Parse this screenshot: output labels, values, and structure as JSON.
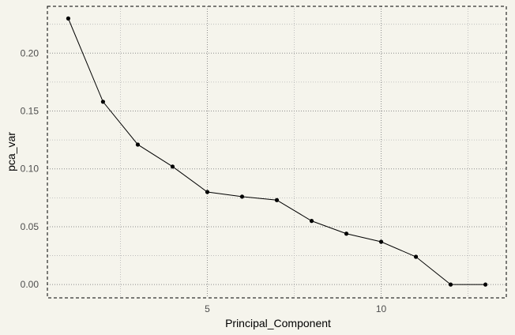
{
  "colors": {
    "background": "#f5f4ec",
    "grid_major": "#8c8c8c",
    "grid_minor": "#b4b4b4",
    "line": "#000000",
    "point": "#000000",
    "panel_border": "#000000",
    "tick_text": "#4d4d4d"
  },
  "chart_data": {
    "type": "line",
    "title": "",
    "xlabel": "Principal_Component",
    "ylabel": "pca_var",
    "x": [
      1,
      2,
      3,
      4,
      5,
      6,
      7,
      8,
      9,
      10,
      11,
      12,
      13
    ],
    "series": [
      {
        "values": [
          0.23,
          0.158,
          0.121,
          0.102,
          0.08,
          0.076,
          0.073,
          0.055,
          0.044,
          0.037,
          0.024,
          0.0,
          0.0
        ]
      }
    ],
    "xlim": [
      0.4,
      13.6
    ],
    "ylim": [
      -0.0115,
      0.2405
    ],
    "x_ticks": [
      5,
      10
    ],
    "x_tick_labels": [
      "5",
      "10"
    ],
    "x_minor_ticks": [
      2.5,
      7.5,
      12.5
    ],
    "y_ticks": [
      0.0,
      0.05,
      0.1,
      0.15,
      0.2
    ],
    "y_tick_labels": [
      "0.00",
      "0.05",
      "0.10",
      "0.15",
      "0.20"
    ],
    "y_minor_ticks": [
      0.025,
      0.075,
      0.125,
      0.175,
      0.225
    ],
    "grid": true,
    "grid_style": "dotted",
    "panel_border": "dashed",
    "markers": true,
    "legend": "none"
  }
}
